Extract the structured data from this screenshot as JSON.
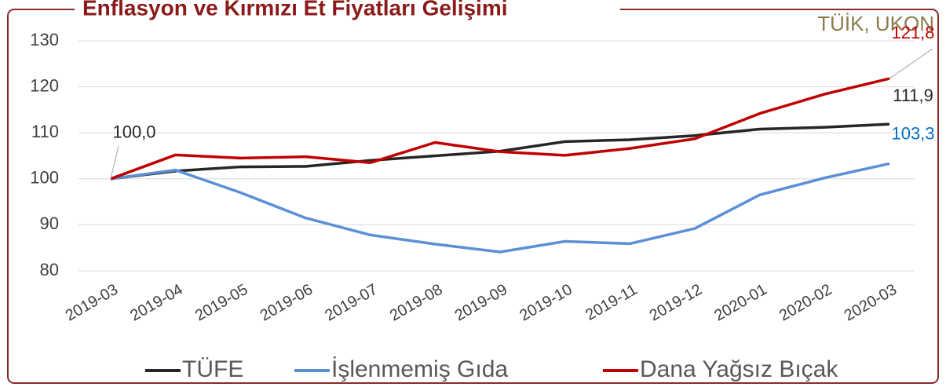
{
  "chart_data": {
    "type": "line",
    "title": "Enflasyon ve Kırmızı Et Fiyatları Gelişimi",
    "source": "TÜİK, UKON",
    "categories": [
      "2019-03",
      "2019-04",
      "2019-05",
      "2019-06",
      "2019-07",
      "2019-08",
      "2019-09",
      "2019-10",
      "2019-11",
      "2019-12",
      "2020-01",
      "2020-02",
      "2020-03"
    ],
    "series": [
      {
        "name": "TÜFE",
        "color": "#262626",
        "values": [
          100,
          101.7,
          102.6,
          102.7,
          104.0,
          105.0,
          106.0,
          108.1,
          108.5,
          109.4,
          110.8,
          111.2,
          111.9
        ],
        "value_labels": [
          "100,0",
          null,
          null,
          null,
          null,
          null,
          null,
          null,
          null,
          null,
          null,
          null,
          "111,9"
        ]
      },
      {
        "name": "İşlenmemiş Gıda",
        "color": "#5b8fd6",
        "values": [
          100,
          101.9,
          97.0,
          91.5,
          87.8,
          85.8,
          84.1,
          86.4,
          85.9,
          89.2,
          96.5,
          100.2,
          103.3
        ],
        "value_labels": [
          null,
          null,
          null,
          null,
          null,
          null,
          null,
          null,
          null,
          null,
          null,
          null,
          "103,3"
        ]
      },
      {
        "name": "Dana Yağsız Bıçak",
        "color": "#c00000",
        "values": [
          100,
          105.2,
          104.5,
          104.8,
          103.5,
          107.9,
          105.9,
          105.1,
          106.6,
          108.7,
          114.2,
          118.4,
          121.8
        ],
        "value_labels": [
          null,
          null,
          null,
          null,
          null,
          null,
          null,
          null,
          null,
          null,
          null,
          null,
          "121,8"
        ]
      }
    ],
    "ylim": [
      80,
      130
    ],
    "yticks": [
      80,
      90,
      100,
      110,
      120,
      130
    ],
    "grid": true,
    "legend": "bottom"
  }
}
